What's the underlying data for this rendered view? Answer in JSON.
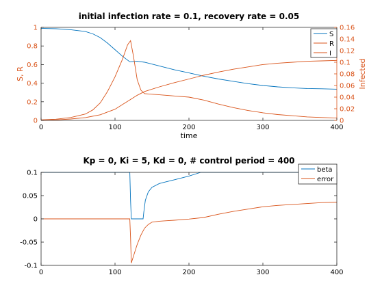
{
  "colors": {
    "blue": "#0072bd",
    "orange": "#d95319",
    "axis": "#262626"
  },
  "chart_data": [
    {
      "type": "line",
      "title": "initial infection rate = 0.1,  recovery rate = 0.05",
      "xlabel": "time",
      "ylabel_left": "S, R",
      "ylabel_right": "Infected",
      "xlim": [
        0,
        400
      ],
      "ylim_left": [
        0,
        1
      ],
      "ylim_right": [
        0,
        0.16
      ],
      "xticks": [
        0,
        100,
        200,
        300,
        400
      ],
      "yticks_left": [
        0,
        0.2,
        0.4,
        0.6,
        0.8,
        1
      ],
      "yticks_right": [
        0,
        0.02,
        0.04,
        0.06,
        0.08,
        0.1,
        0.12,
        0.14,
        0.16
      ],
      "legend": {
        "position": "top-right",
        "labels": [
          "S",
          "R",
          "I"
        ]
      },
      "series": [
        {
          "name": "S",
          "axis": "left",
          "color": "#0072bd",
          "x": [
            0,
            20,
            40,
            60,
            70,
            80,
            90,
            100,
            110,
            120,
            130,
            140,
            160,
            180,
            200,
            220,
            240,
            260,
            280,
            300,
            320,
            340,
            360,
            380,
            400
          ],
          "y": [
            0.99,
            0.985,
            0.975,
            0.955,
            0.93,
            0.89,
            0.83,
            0.76,
            0.69,
            0.63,
            0.635,
            0.625,
            0.585,
            0.545,
            0.51,
            0.475,
            0.445,
            0.42,
            0.395,
            0.375,
            0.36,
            0.35,
            0.343,
            0.34,
            0.335
          ]
        },
        {
          "name": "R",
          "axis": "left",
          "color": "#d95319",
          "x": [
            0,
            20,
            40,
            60,
            80,
            100,
            110,
            120,
            130,
            140,
            160,
            180,
            200,
            220,
            240,
            260,
            280,
            300,
            320,
            340,
            360,
            380,
            400
          ],
          "y": [
            0,
            0.005,
            0.015,
            0.03,
            0.06,
            0.12,
            0.17,
            0.22,
            0.27,
            0.31,
            0.36,
            0.405,
            0.445,
            0.485,
            0.52,
            0.55,
            0.575,
            0.6,
            0.615,
            0.625,
            0.635,
            0.64,
            0.645
          ]
        },
        {
          "name": "I",
          "axis": "right",
          "color": "#d95319",
          "x": [
            0,
            20,
            40,
            60,
            70,
            80,
            90,
            100,
            110,
            117,
            121,
            125,
            130,
            135,
            140,
            160,
            180,
            200,
            220,
            240,
            260,
            280,
            300,
            320,
            340,
            360,
            380,
            400
          ],
          "y": [
            0.001,
            0.002,
            0.005,
            0.011,
            0.018,
            0.03,
            0.05,
            0.075,
            0.105,
            0.13,
            0.137,
            0.11,
            0.07,
            0.052,
            0.046,
            0.044,
            0.042,
            0.04,
            0.035,
            0.028,
            0.022,
            0.017,
            0.013,
            0.01,
            0.008,
            0.006,
            0.005,
            0.004
          ]
        }
      ]
    },
    {
      "type": "line",
      "title": "Kp = 0, Ki = 5, Kd = 0, # control period = 400",
      "xlim": [
        0,
        400
      ],
      "ylim": [
        -0.1,
        0.1
      ],
      "xticks": [
        0,
        100,
        200,
        300,
        400
      ],
      "yticks": [
        -0.1,
        -0.05,
        0,
        0.05,
        0.1
      ],
      "legend": {
        "position": "top-right",
        "labels": [
          "beta",
          "error"
        ]
      },
      "series": [
        {
          "name": "beta",
          "color": "#0072bd",
          "x": [
            0,
            120,
            121,
            122,
            138,
            139,
            141,
            145,
            150,
            160,
            170,
            180,
            190,
            200,
            210,
            216,
            300,
            400
          ],
          "y": [
            0.1,
            0.1,
            0.04,
            0.0,
            0.0,
            0.015,
            0.04,
            0.058,
            0.068,
            0.076,
            0.08,
            0.084,
            0.088,
            0.092,
            0.097,
            0.1,
            0.1,
            0.1
          ]
        },
        {
          "name": "error",
          "color": "#d95319",
          "x": [
            0,
            120,
            121,
            122,
            125,
            130,
            135,
            140,
            145,
            150,
            160,
            170,
            180,
            200,
            220,
            240,
            260,
            280,
            300,
            320,
            340,
            360,
            380,
            400
          ],
          "y": [
            0,
            0,
            -0.04,
            -0.095,
            -0.08,
            -0.055,
            -0.035,
            -0.02,
            -0.012,
            -0.007,
            -0.005,
            -0.004,
            -0.003,
            -0.0005,
            0.003,
            0.01,
            0.016,
            0.021,
            0.026,
            0.029,
            0.031,
            0.033,
            0.035,
            0.036
          ]
        }
      ]
    }
  ]
}
